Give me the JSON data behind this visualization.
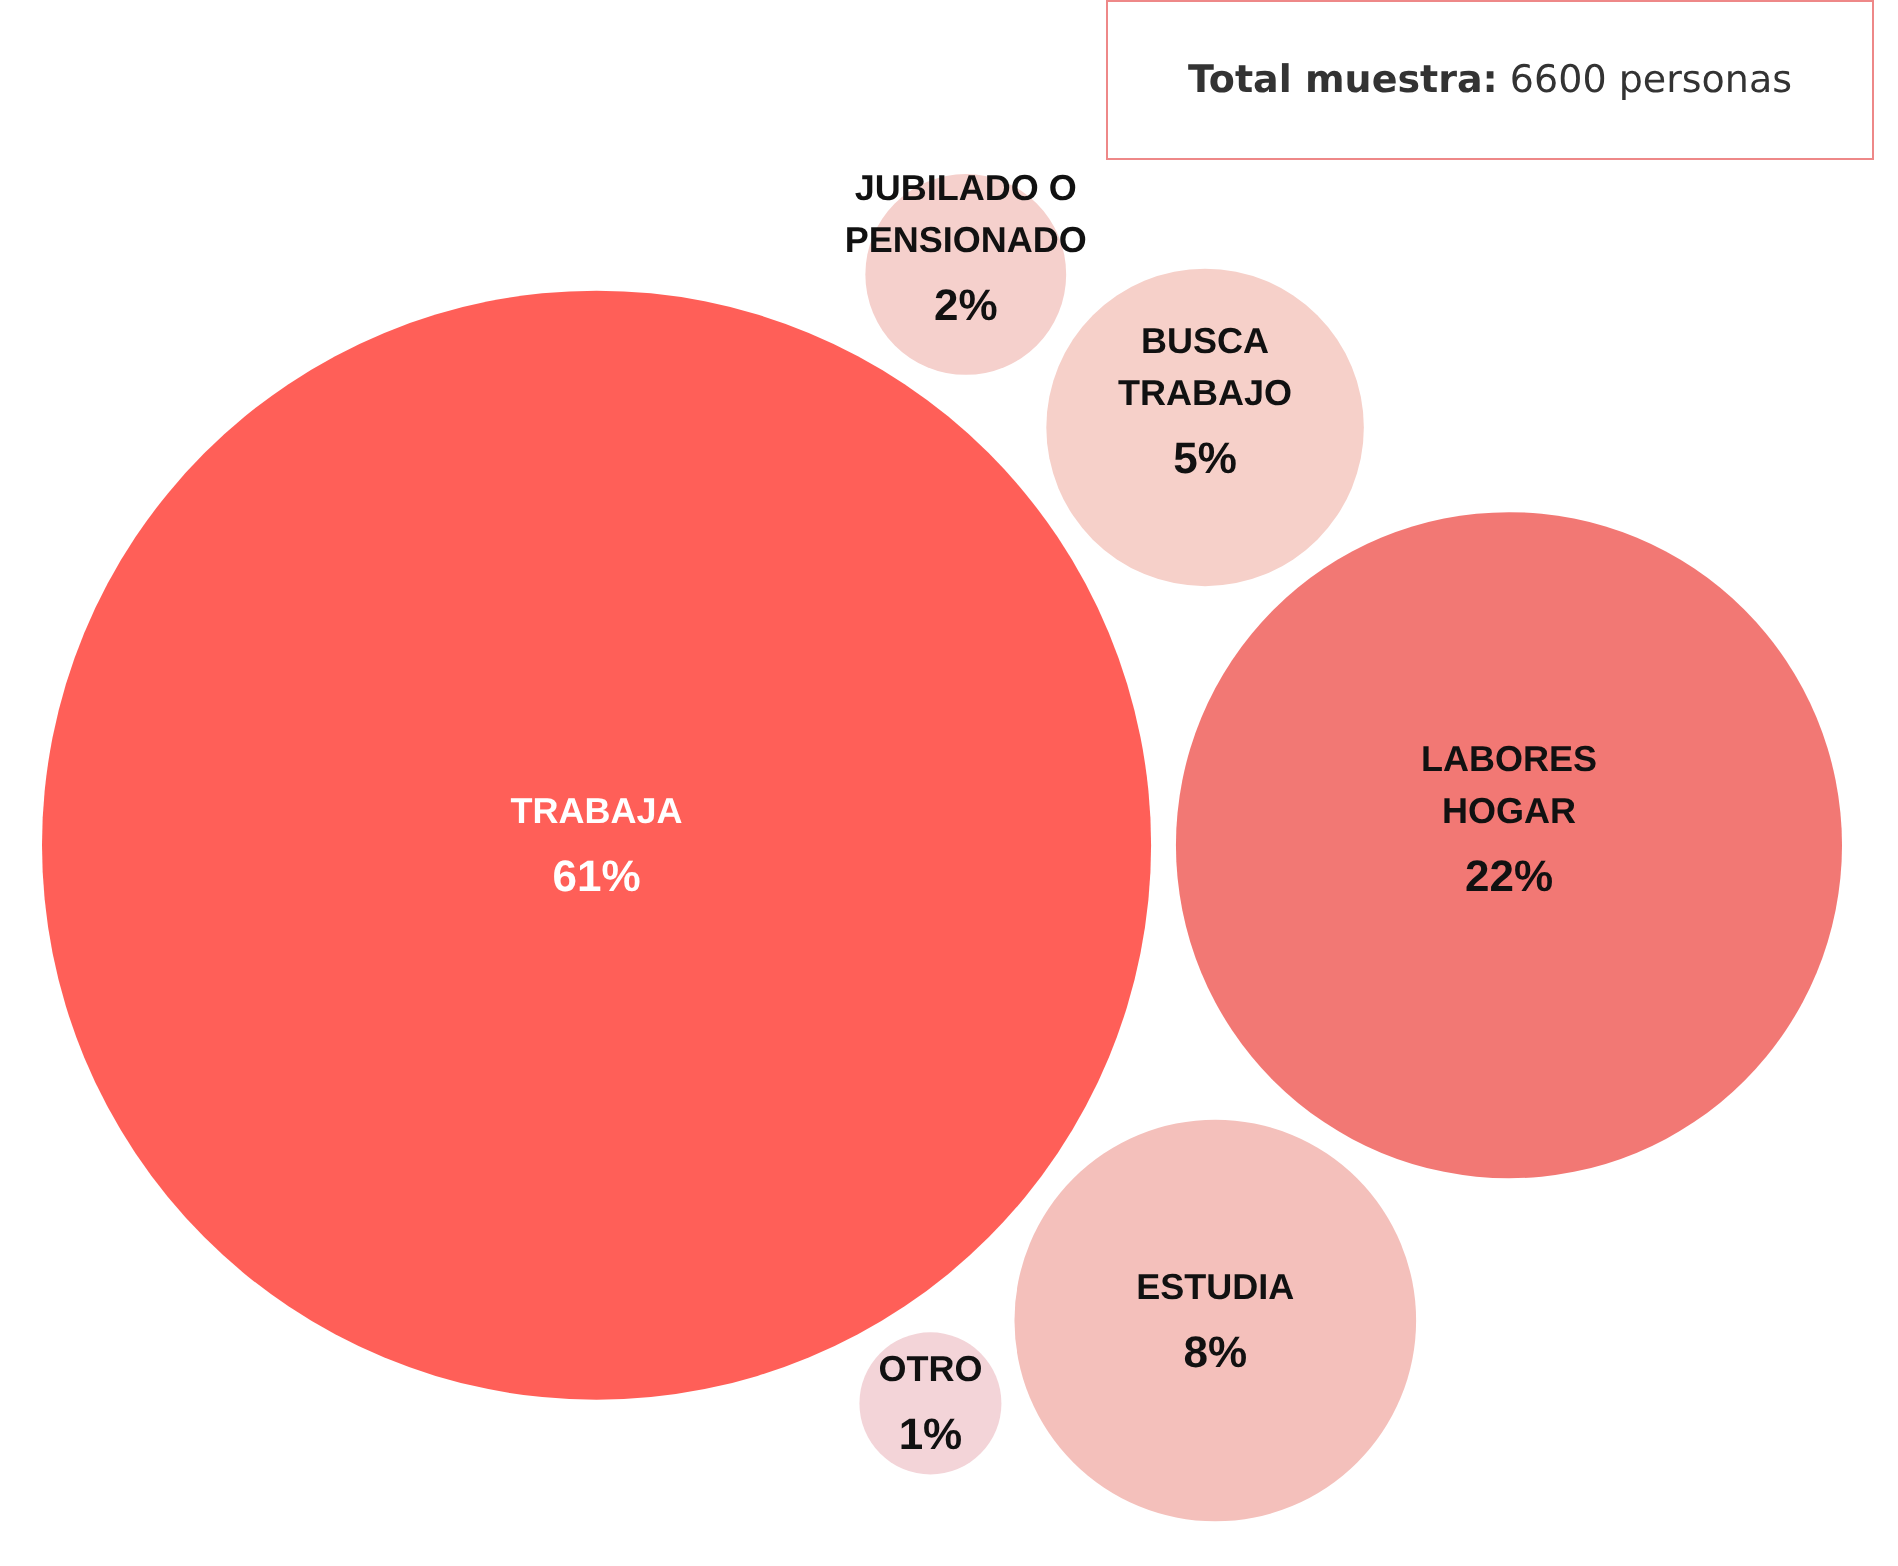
{
  "chart_data": {
    "type": "other",
    "categories": [
      "TRABAJA",
      "LABORES HOGAR",
      "ESTUDIA",
      "BUSCA TRABAJO",
      "JUBILADO O PENSIONADO",
      "OTRO"
    ],
    "values": [
      61,
      22,
      8,
      5,
      2,
      1
    ],
    "value_labels": [
      "61%",
      "22%",
      "8%",
      "5%",
      "2%",
      "1%"
    ],
    "colors": [
      "#ff5f58",
      "#f27874",
      "#f4c0bb",
      "#f6d0c9",
      "#f5d0cc",
      "#f3d4d8"
    ],
    "annotations": [
      "Total muestra: 6600 personas"
    ]
  }
}
